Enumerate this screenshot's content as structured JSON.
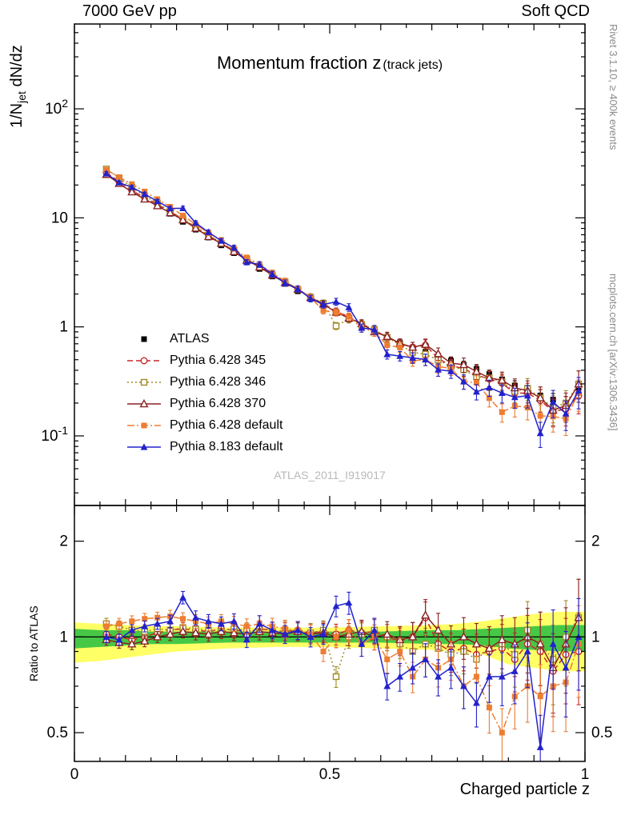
{
  "header": {
    "left": "7000 GeV pp",
    "right": "Soft QCD"
  },
  "side": {
    "top": "Rivet 3.1.10, ≥ 400k events",
    "bottom": "mcplots.cern.ch [arXiv:1306.3436]"
  },
  "watermark": "ATLAS_2011_I919017",
  "chart_data": {
    "type": "line",
    "title": "Momentum fraction z",
    "title_suffix": "(track jets)",
    "xlabel": "Charged particle z",
    "ylabel_main_pre": "1/N",
    "ylabel_main_sub": "jet",
    "ylabel_main_post": " dN/dz",
    "ylabel_ratio": "Ratio to ATLAS",
    "xlim": [
      0,
      1
    ],
    "ylim_main": [
      0.023,
      600
    ],
    "ylim_ratio": [
      0.406,
      2.59
    ],
    "x_ticks": {
      "values": [
        0,
        0.5,
        1
      ],
      "labels": [
        "0",
        "0.5",
        "1"
      ]
    },
    "y_ticks_main": {
      "values": [
        100,
        10,
        1,
        0.1
      ],
      "labels": [
        "10^2",
        "10",
        "1",
        "10^-1"
      ]
    },
    "y_ticks_ratio": {
      "values": [
        2,
        1,
        0.5
      ],
      "labels": [
        "2",
        "1",
        "0.5"
      ]
    },
    "x": [
      0.0625,
      0.0875,
      0.1125,
      0.1375,
      0.1625,
      0.1875,
      0.2125,
      0.2375,
      0.2625,
      0.2875,
      0.3125,
      0.3375,
      0.3625,
      0.3875,
      0.4125,
      0.4375,
      0.4625,
      0.4875,
      0.5125,
      0.5375,
      0.5625,
      0.5875,
      0.6125,
      0.6375,
      0.6625,
      0.6875,
      0.7125,
      0.7375,
      0.7625,
      0.7875,
      0.8125,
      0.8375,
      0.8625,
      0.8875,
      0.9125,
      0.9375,
      0.9625,
      0.9875
    ],
    "rel_err": [
      0.04,
      0.04,
      0.04,
      0.04,
      0.04,
      0.045,
      0.045,
      0.05,
      0.05,
      0.05,
      0.055,
      0.055,
      0.06,
      0.06,
      0.065,
      0.065,
      0.07,
      0.07,
      0.075,
      0.08,
      0.085,
      0.09,
      0.095,
      0.1,
      0.11,
      0.12,
      0.13,
      0.14,
      0.15,
      0.16,
      0.17,
      0.19,
      0.21,
      0.23,
      0.26,
      0.28,
      0.3,
      0.32
    ],
    "reference": {
      "name": "ATLAS",
      "color": "#000000",
      "marker": "square-filled",
      "values": [
        25.5,
        21.5,
        18.2,
        15.3,
        12.9,
        10.9,
        9.2,
        7.8,
        6.6,
        5.6,
        4.75,
        4.0,
        3.4,
        2.9,
        2.48,
        2.12,
        1.82,
        1.57,
        1.36,
        1.18,
        1.03,
        0.9,
        0.8,
        0.72,
        0.65,
        0.59,
        0.54,
        0.49,
        0.45,
        0.41,
        0.37,
        0.33,
        0.29,
        0.26,
        0.235,
        0.215,
        0.2,
        0.26
      ]
    },
    "series": [
      {
        "name": "Pythia 6.428 345",
        "color": "#c62828",
        "marker": "circle-open",
        "line": "dashed",
        "ratio": [
          1.02,
          1.0,
          0.98,
          1.0,
          1.03,
          1.05,
          1.06,
          1.05,
          1.04,
          1.06,
          1.05,
          1.04,
          1.06,
          1.05,
          1.04,
          1.05,
          1.03,
          1.04,
          1.02,
          1.05,
          1.03,
          1.04,
          1.0,
          0.97,
          1.0,
          1.15,
          0.95,
          0.9,
          0.92,
          0.88,
          0.9,
          0.92,
          0.85,
          0.95,
          0.9,
          0.78,
          0.88,
          0.9
        ]
      },
      {
        "name": "Pythia 6.428 346",
        "color": "#a08a28",
        "marker": "square-open",
        "line": "dotted",
        "ratio": [
          1.1,
          1.08,
          1.05,
          1.04,
          1.06,
          1.05,
          1.07,
          1.06,
          1.05,
          1.04,
          1.06,
          1.05,
          1.04,
          1.03,
          1.05,
          1.04,
          1.03,
          1.05,
          0.75,
          1.0,
          1.02,
          1.05,
          1.0,
          0.95,
          0.9,
          0.95,
          0.92,
          0.88,
          0.9,
          0.85,
          0.92,
          0.95,
          0.88,
          1.05,
          0.95,
          0.85,
          1.0,
          1.15
        ]
      },
      {
        "name": "Pythia 6.428 370",
        "color": "#8b2222",
        "marker": "triangle-open",
        "line": "solid",
        "ratio": [
          0.98,
          0.96,
          0.95,
          0.97,
          1.0,
          1.02,
          1.04,
          1.03,
          1.02,
          1.04,
          1.03,
          1.02,
          1.04,
          1.03,
          1.02,
          1.04,
          1.02,
          1.03,
          1.0,
          1.02,
          1.04,
          1.0,
          1.02,
          0.98,
          1.0,
          1.17,
          1.05,
          0.95,
          1.0,
          0.95,
          0.92,
          0.98,
          0.95,
          1.0,
          0.95,
          0.8,
          0.95,
          1.15
        ]
      },
      {
        "name": "Pythia 6.428 default",
        "color": "#ed7d31",
        "marker": "square-filled",
        "line": "dashdot",
        "ratio": [
          1.08,
          1.1,
          1.12,
          1.14,
          1.15,
          1.16,
          1.14,
          1.12,
          1.1,
          1.12,
          1.1,
          1.08,
          1.1,
          1.08,
          1.06,
          1.05,
          1.02,
          0.9,
          1.0,
          1.05,
          0.95,
          1.0,
          0.85,
          0.9,
          0.75,
          0.85,
          0.8,
          0.85,
          0.7,
          0.75,
          0.6,
          0.5,
          0.65,
          0.7,
          0.65,
          0.7,
          0.72,
          0.95
        ]
      },
      {
        "name": "Pythia 8.183 default",
        "color": "#2222cc",
        "marker": "triangle-filled",
        "line": "solid",
        "ratio": [
          1.0,
          0.98,
          1.05,
          1.08,
          1.1,
          1.12,
          1.33,
          1.15,
          1.12,
          1.1,
          1.12,
          0.98,
          1.1,
          1.05,
          1.02,
          1.05,
          1.0,
          1.02,
          1.25,
          1.28,
          0.95,
          1.05,
          0.7,
          0.75,
          0.8,
          0.85,
          0.75,
          0.8,
          0.7,
          0.62,
          0.75,
          0.75,
          0.78,
          0.9,
          0.45,
          0.95,
          0.8,
          1.0
        ]
      }
    ],
    "bands": {
      "x": [
        0,
        0.05,
        0.1,
        0.15,
        0.2,
        0.3,
        0.4,
        0.5,
        0.6,
        0.7,
        0.75,
        0.8,
        0.85,
        0.9,
        0.95,
        1.0
      ],
      "yellow_lo": [
        0.83,
        0.84,
        0.86,
        0.88,
        0.9,
        0.92,
        0.93,
        0.93,
        0.92,
        0.91,
        0.9,
        0.88,
        0.82,
        0.8,
        0.78,
        0.78
      ],
      "yellow_hi": [
        1.11,
        1.1,
        1.09,
        1.08,
        1.08,
        1.07,
        1.07,
        1.07,
        1.08,
        1.09,
        1.1,
        1.12,
        1.15,
        1.18,
        1.2,
        1.2
      ],
      "green_lo": [
        0.92,
        0.93,
        0.94,
        0.95,
        0.95,
        0.96,
        0.96,
        0.96,
        0.96,
        0.95,
        0.95,
        0.94,
        0.92,
        0.91,
        0.9,
        0.9
      ],
      "green_hi": [
        1.06,
        1.05,
        1.05,
        1.04,
        1.04,
        1.04,
        1.04,
        1.04,
        1.04,
        1.05,
        1.05,
        1.06,
        1.07,
        1.08,
        1.09,
        1.09
      ],
      "yellow_color": "#ffff66",
      "green_color": "#46c846"
    }
  }
}
